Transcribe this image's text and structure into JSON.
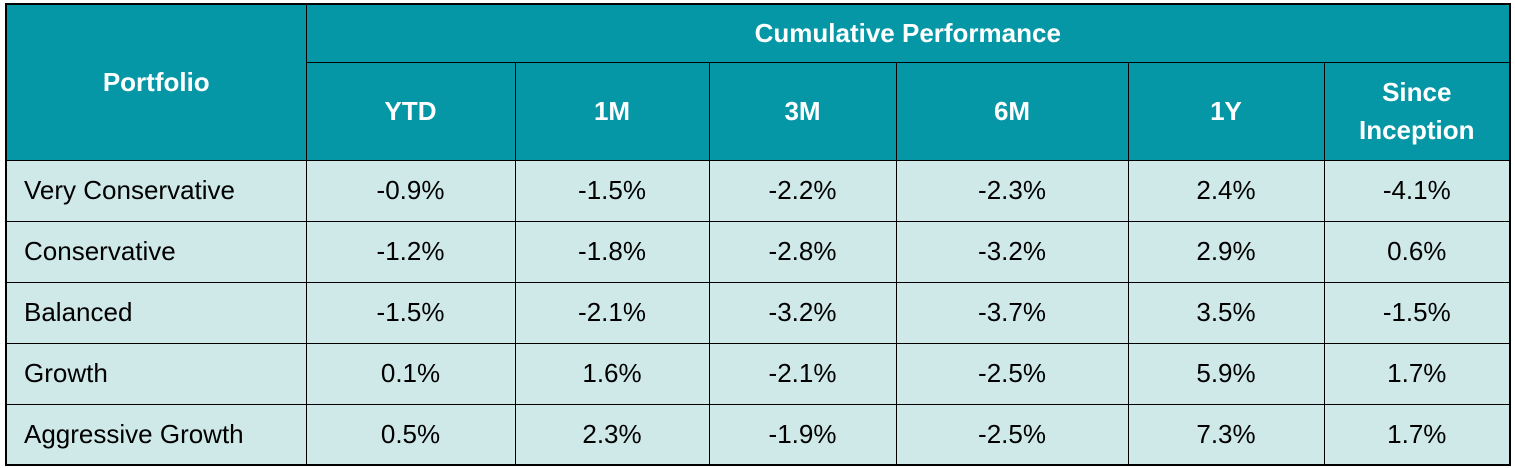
{
  "header_color": "#0597a5",
  "body_color": "#cfe9e9",
  "border_color": "#000000",
  "chart_data": {
    "type": "table",
    "row_header": "Portfolio",
    "group_header": "Cumulative Performance",
    "columns": [
      "YTD",
      "1M",
      "3M",
      "6M",
      "1Y",
      "Since Inception"
    ],
    "rows": [
      {
        "name": "Very Conservative",
        "values": [
          "-0.9%",
          "-1.5%",
          "-2.2%",
          "-2.3%",
          "2.4%",
          "-4.1%"
        ]
      },
      {
        "name": "Conservative",
        "values": [
          "-1.2%",
          "-1.8%",
          "-2.8%",
          "-3.2%",
          "2.9%",
          "0.6%"
        ]
      },
      {
        "name": "Balanced",
        "values": [
          "-1.5%",
          "-2.1%",
          "-3.2%",
          "-3.7%",
          "3.5%",
          "-1.5%"
        ]
      },
      {
        "name": "Growth",
        "values": [
          "0.1%",
          "1.6%",
          "-2.1%",
          "-2.5%",
          "5.9%",
          "1.7%"
        ]
      },
      {
        "name": "Aggressive Growth",
        "values": [
          "0.5%",
          "2.3%",
          "-1.9%",
          "-2.5%",
          "7.3%",
          "1.7%"
        ]
      }
    ]
  }
}
